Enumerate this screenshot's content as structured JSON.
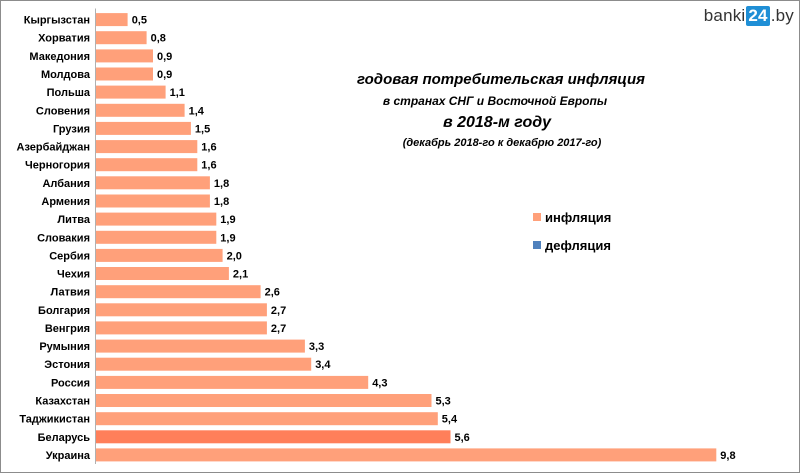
{
  "logo": {
    "prefix": "banki",
    "highlight": "24",
    "suffix": ".by"
  },
  "colors": {
    "inflation": "#ffa07a",
    "highlight": "#ff7f5a",
    "deflation": "#4f81bd"
  },
  "chart_data": {
    "type": "bar",
    "orientation": "horizontal",
    "title_lines": [
      "годовая потребительская инфляция",
      "в странах СНГ и Восточной Европы",
      "в 2018-м году",
      "(декабрь 2018-го к декабрю 2017-го)"
    ],
    "categories": [
      "Кыргызстан",
      "Хорватия",
      "Македония",
      "Молдова",
      "Польша",
      "Словения",
      "Грузия",
      "Азербайджан",
      "Черногория",
      "Албания",
      "Армения",
      "Литва",
      "Словакия",
      "Сербия",
      "Чехия",
      "Латвия",
      "Болгария",
      "Венгрия",
      "Румыния",
      "Эстония",
      "Россия",
      "Казахстан",
      "Таджикистан",
      "Беларусь",
      "Украина"
    ],
    "values": [
      0.5,
      0.8,
      0.9,
      0.9,
      1.1,
      1.4,
      1.5,
      1.6,
      1.6,
      1.8,
      1.8,
      1.9,
      1.9,
      2.0,
      2.1,
      2.6,
      2.7,
      2.7,
      3.3,
      3.4,
      4.3,
      5.3,
      5.4,
      5.6,
      9.8
    ],
    "value_labels": [
      "0,5",
      "0,8",
      "0,9",
      "0,9",
      "1,1",
      "1,4",
      "1,5",
      "1,6",
      "1,6",
      "1,8",
      "1,8",
      "1,9",
      "1,9",
      "2,0",
      "2,1",
      "2,6",
      "2,7",
      "2,7",
      "3,3",
      "3,4",
      "4,3",
      "5,3",
      "5,4",
      "5,6",
      "9,8"
    ],
    "highlight_category": "Беларусь",
    "xlim": [
      0,
      10
    ],
    "legend": {
      "position": "right",
      "items": [
        {
          "name": "инфляция",
          "color": "#ffa07a"
        },
        {
          "name": "дефляция",
          "color": "#4f81bd"
        }
      ]
    },
    "grid": false
  }
}
